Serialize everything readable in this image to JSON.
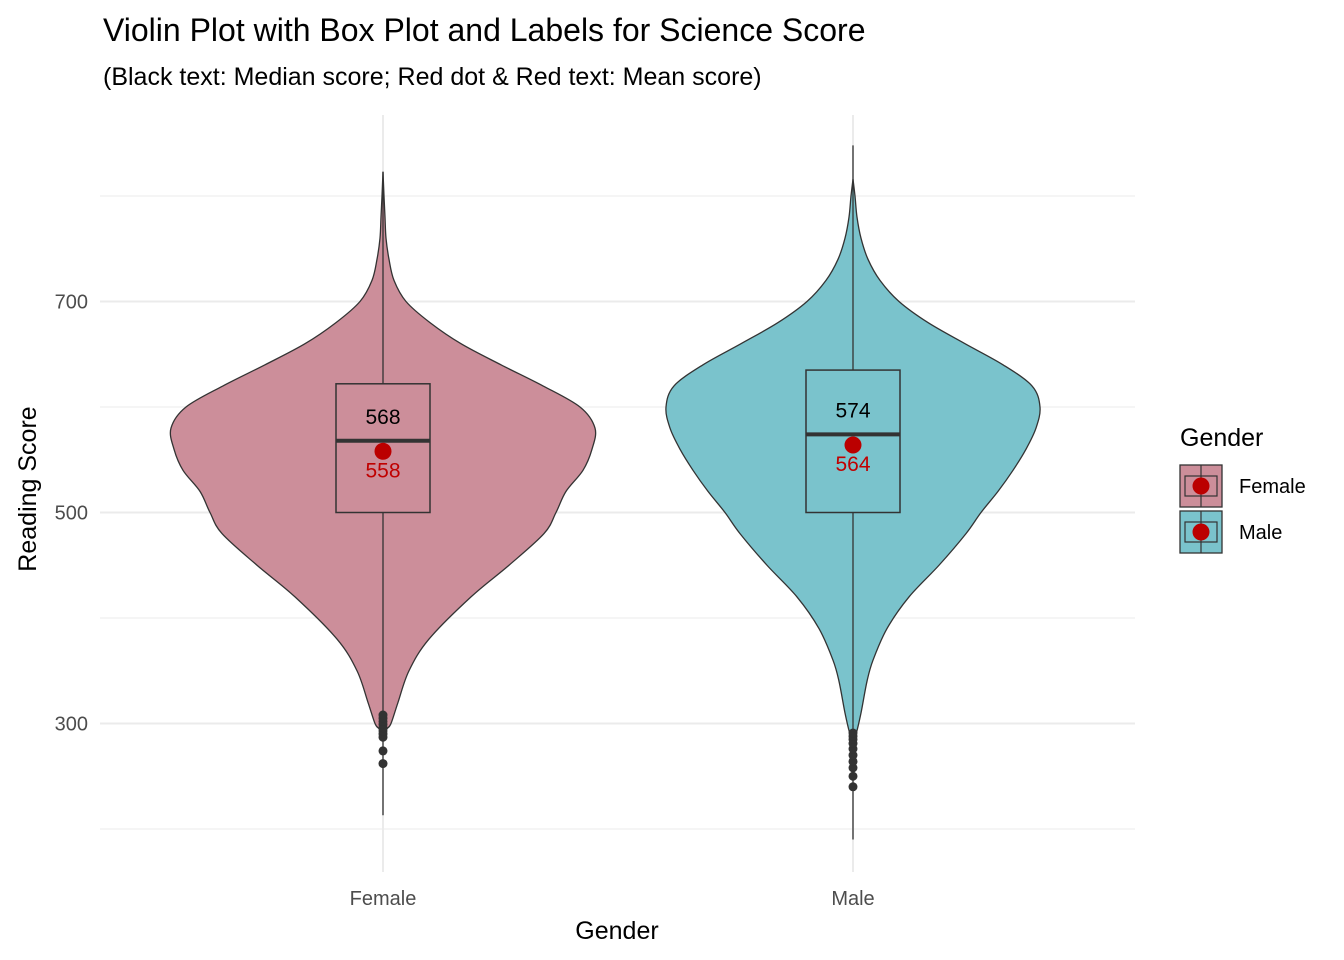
{
  "chart_data": {
    "type": "violin",
    "title": "Violin Plot with Box Plot and Labels for Science Score",
    "subtitle": "(Black text: Median score; Red dot & Red text: Mean score)",
    "xlabel": "Gender",
    "ylabel": "Reading Score",
    "ylim": [
      190,
      855
    ],
    "yticks": [
      300,
      500,
      700
    ],
    "grid": true,
    "legend": {
      "title": "Gender",
      "position": "right"
    },
    "mean_color": "#bb0000",
    "groups": [
      {
        "name": "Female",
        "color": "#cc8e9a",
        "violin_min": 290,
        "violin_max": 823,
        "box": {
          "q1": 500,
          "median": 568,
          "q3": 622
        },
        "whisker_low": 213,
        "whisker_high": 823,
        "mean": 558,
        "median_label": "568",
        "mean_label": "558",
        "outliers": [
          262,
          274,
          287,
          290,
          293,
          296,
          299,
          302,
          305,
          308
        ],
        "density": [
          [
            290,
            1
          ],
          [
            295,
            4
          ],
          [
            300,
            8
          ],
          [
            320,
            15
          ],
          [
            350,
            26
          ],
          [
            380,
            46
          ],
          [
            420,
            88
          ],
          [
            450,
            126
          ],
          [
            480,
            161
          ],
          [
            500,
            173
          ],
          [
            520,
            183
          ],
          [
            540,
            200
          ],
          [
            560,
            209
          ],
          [
            580,
            212
          ],
          [
            600,
            197
          ],
          [
            620,
            160
          ],
          [
            640,
            118
          ],
          [
            660,
            78
          ],
          [
            680,
            47
          ],
          [
            700,
            23
          ],
          [
            720,
            11
          ],
          [
            740,
            6
          ],
          [
            760,
            3
          ],
          [
            780,
            2
          ],
          [
            800,
            1
          ],
          [
            823,
            0
          ]
        ]
      },
      {
        "name": "Male",
        "color": "#7ac3cc",
        "violin_min": 285,
        "violin_max": 816,
        "box": {
          "q1": 500,
          "median": 574,
          "q3": 635
        },
        "whisker_low": 190,
        "whisker_high": 848,
        "mean": 564,
        "median_label": "574",
        "mean_label": "564",
        "outliers": [
          240,
          250,
          258,
          264,
          270,
          276,
          281,
          285,
          288,
          291
        ],
        "density": [
          [
            285,
            0
          ],
          [
            290,
            3
          ],
          [
            310,
            8
          ],
          [
            340,
            14
          ],
          [
            360,
            20
          ],
          [
            390,
            34
          ],
          [
            420,
            56
          ],
          [
            450,
            86
          ],
          [
            480,
            113
          ],
          [
            500,
            128
          ],
          [
            520,
            145
          ],
          [
            540,
            160
          ],
          [
            560,
            173
          ],
          [
            580,
            183
          ],
          [
            600,
            187
          ],
          [
            620,
            179
          ],
          [
            640,
            150
          ],
          [
            660,
            112
          ],
          [
            680,
            75
          ],
          [
            700,
            46
          ],
          [
            720,
            27
          ],
          [
            740,
            15
          ],
          [
            760,
            8
          ],
          [
            780,
            4
          ],
          [
            800,
            2
          ],
          [
            816,
            0
          ]
        ]
      }
    ]
  }
}
